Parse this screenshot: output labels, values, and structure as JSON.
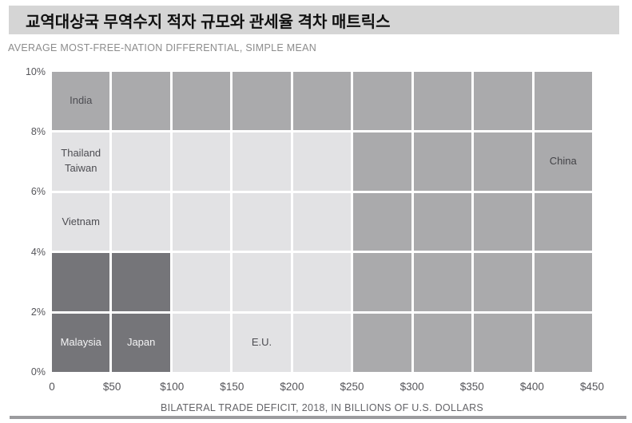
{
  "header": {
    "title": "교역대상국 무역수지 적자 규모와 관세율 격차 매트릭스"
  },
  "chart_data": {
    "type": "heatmap",
    "title": "교역대상국 무역수지 적자 규모와 관세율 격차 매트릭스",
    "subtitle": "AVERAGE MOST-FREE-NATION DIFFERENTIAL, SIMPLE MEAN",
    "xlabel": "BILATERAL TRADE DEFICIT, 2018, IN BILLIONS OF U.S. DOLLARS",
    "ylabel": "AVERAGE MOST-FREE-NATION DIFFERENTIAL, SIMPLE MEAN",
    "x_ticks": [
      "0",
      "$50",
      "$100",
      "$150",
      "$200",
      "$250",
      "$300",
      "$350",
      "$400",
      "$450"
    ],
    "y_ticks": [
      "0%",
      "2%",
      "4%",
      "6%",
      "8%",
      "10%"
    ],
    "xlim": [
      0,
      450
    ],
    "ylim": [
      0,
      10
    ],
    "x_cell_width_billions": 50,
    "y_cell_height_pct": 2,
    "grid_on": true,
    "legend": "none",
    "shade_colors": {
      "dark": "#757579",
      "medium": "#aaaaac",
      "light": "#e2e2e4"
    },
    "grid": {
      "n_cols": 9,
      "n_rows": 5,
      "rows_top_to_bottom": [
        [
          "medium",
          "medium",
          "medium",
          "medium",
          "medium",
          "medium",
          "medium",
          "medium",
          "medium"
        ],
        [
          "light",
          "light",
          "light",
          "light",
          "light",
          "medium",
          "medium",
          "medium",
          "medium"
        ],
        [
          "light",
          "light",
          "light",
          "light",
          "light",
          "medium",
          "medium",
          "medium",
          "medium"
        ],
        [
          "dark",
          "dark",
          "light",
          "light",
          "light",
          "medium",
          "medium",
          "medium",
          "medium"
        ],
        [
          "dark",
          "dark",
          "light",
          "light",
          "light",
          "medium",
          "medium",
          "medium",
          "medium"
        ]
      ]
    },
    "points": [
      {
        "label": "India",
        "lines": [
          "India"
        ],
        "row_from_top": 0,
        "col": 0,
        "label_color": "#4d4d52",
        "deficit_range_billions": [
          0,
          50
        ],
        "differential_range_pct": [
          8,
          10
        ]
      },
      {
        "label": "Thailand / Taiwan",
        "lines": [
          "Thailand",
          "Taiwan"
        ],
        "row_from_top": 1,
        "col": 0,
        "label_color": "#4d4d52",
        "deficit_range_billions": [
          0,
          50
        ],
        "differential_range_pct": [
          6,
          8
        ]
      },
      {
        "label": "China",
        "lines": [
          "China"
        ],
        "row_from_top": 1,
        "col": 8,
        "label_color": "#434347",
        "deficit_range_billions": [
          400,
          450
        ],
        "differential_range_pct": [
          6,
          8
        ]
      },
      {
        "label": "Vietnam",
        "lines": [
          "Vietnam"
        ],
        "row_from_top": 2,
        "col": 0,
        "label_color": "#4d4d52",
        "deficit_range_billions": [
          0,
          50
        ],
        "differential_range_pct": [
          4,
          6
        ]
      },
      {
        "label": "Malaysia",
        "lines": [
          "Malaysia"
        ],
        "row_from_top": 4,
        "col": 0,
        "label_color": "#f4f4f5",
        "deficit_range_billions": [
          0,
          50
        ],
        "differential_range_pct": [
          0,
          2
        ]
      },
      {
        "label": "Japan",
        "lines": [
          "Japan"
        ],
        "row_from_top": 4,
        "col": 1,
        "label_color": "#f4f4f5",
        "deficit_range_billions": [
          50,
          100
        ],
        "differential_range_pct": [
          0,
          2
        ]
      },
      {
        "label": "E.U.",
        "lines": [
          "E.U."
        ],
        "row_from_top": 4,
        "col": 3,
        "label_color": "#4d4d52",
        "deficit_range_billions": [
          150,
          200
        ],
        "differential_range_pct": [
          0,
          2
        ]
      }
    ]
  },
  "footer": {
    "divider_color": "#9b9b9e"
  }
}
